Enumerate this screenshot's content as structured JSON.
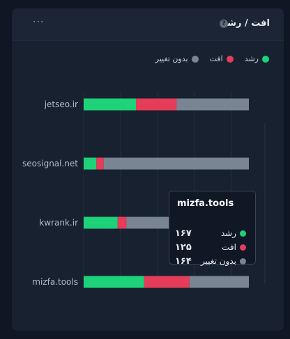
{
  "card": {
    "title": "افت / رشد",
    "help_glyph": "?",
    "menu_glyph": "···"
  },
  "colors": {
    "growth": "#1ed27a",
    "decline": "#e53c5a",
    "no_change": "#7a8594"
  },
  "chart_data": {
    "type": "bar",
    "orientation": "horizontal",
    "stacked": true,
    "categories": [
      "jetseo.ir",
      "seosignal.net",
      "kwrank.ir",
      "mizfa.tools"
    ],
    "series": [
      {
        "name": "رشد",
        "color": "#1ed27a",
        "values": [
          145,
          35,
          95,
          167
        ]
      },
      {
        "name": "افت",
        "color": "#e53c5a",
        "values": [
          113,
          20,
          25,
          125
        ]
      },
      {
        "name": "بدون تغییر",
        "color": "#7a8594",
        "values": [
          200,
          399,
          343,
          164
        ]
      }
    ],
    "grid": true,
    "legend_position": "top-right"
  },
  "tooltip": {
    "title": "mizfa.tools",
    "rows": [
      {
        "label": "رشد",
        "value": "۱۶۷",
        "color": "#1ed27a"
      },
      {
        "label": "افت",
        "value": "۱۲۵",
        "color": "#e53c5a"
      },
      {
        "label": "بدون تغییر",
        "value": "۱۶۴",
        "color": "#7a8594"
      }
    ]
  }
}
